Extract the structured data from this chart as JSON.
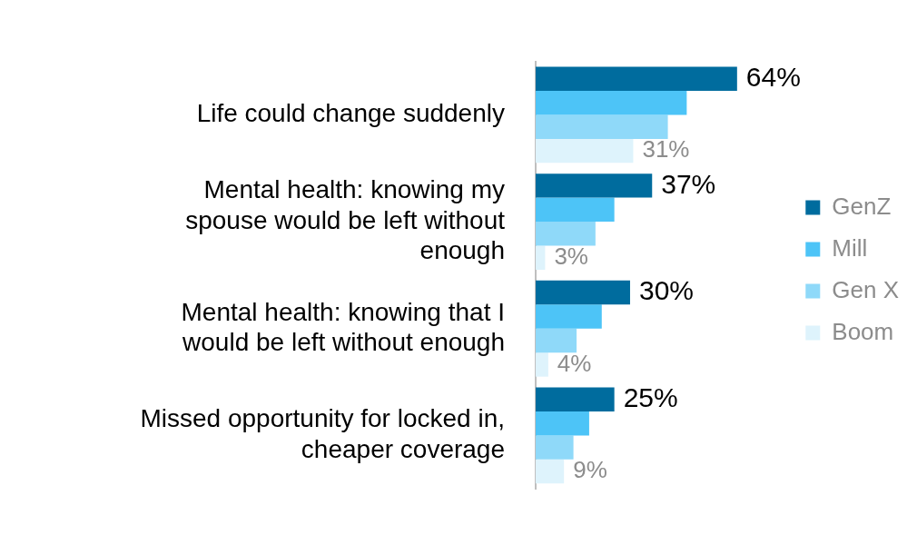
{
  "chart_data": {
    "type": "bar",
    "orientation": "horizontal",
    "legend": "right",
    "categories": [
      "Life could change suddenly",
      "Mental health: knowing my\nspouse would be left without\nenough",
      "Mental health: knowing that I\nwould be left without enough",
      "Missed opportunity for locked in,\ncheaper coverage"
    ],
    "series": [
      {
        "name": "GenZ",
        "color": "#006c9e",
        "values": [
          64,
          37,
          30,
          25
        ],
        "value_labels": [
          "64%",
          "37%",
          "30%",
          "25%"
        ]
      },
      {
        "name": "Mill",
        "color": "#4dc4f7",
        "values": [
          48,
          25,
          21,
          17
        ]
      },
      {
        "name": "Gen X",
        "color": "#8fd9f9",
        "values": [
          42,
          19,
          13,
          12
        ]
      },
      {
        "name": "Boom",
        "color": "#def3fc",
        "values": [
          31,
          3,
          4,
          9
        ],
        "value_labels": [
          "31%",
          "3%",
          "4%",
          "9%"
        ]
      }
    ]
  }
}
